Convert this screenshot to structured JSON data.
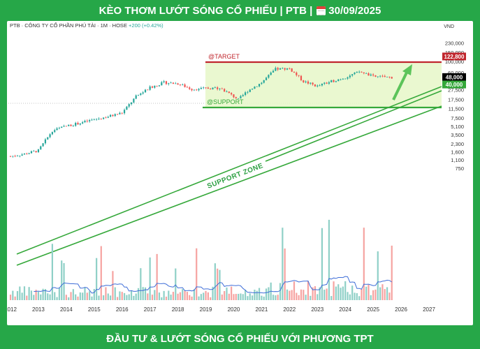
{
  "banner_top": {
    "title": "KÈO THƠM LƯỚT SÓNG CỔ PHIẾU | PTB |",
    "date": "30/09/2025"
  },
  "banner_bottom": {
    "text": "ĐẦU TƯ & LƯỚT SÓNG CỔ PHIẾU VỚI PHƯƠNG TPT"
  },
  "chart_header": {
    "symbol_line": "PTB · CÔNG TY CỔ PHẦN PHÚ TÀI · 1M · HOSE",
    "change": "+200 (+0.42%)",
    "currency": "VND"
  },
  "annotations": {
    "target_label": "@TARGET",
    "support_label": "@SUPPORT",
    "zone_label": "SUPPORT  ZONE"
  },
  "colors": {
    "banner": "#26a748",
    "target": "#c0262d",
    "support": "#35a83a",
    "zone_fill": "#e6f7c8",
    "up": "#26a69a",
    "down": "#ef5350"
  },
  "chart_data": {
    "type": "candlestick",
    "x_axis_labels": [
      "2012",
      "2013",
      "2014",
      "2015",
      "2016",
      "2017",
      "2018",
      "2019",
      "2020",
      "2021",
      "2022",
      "2023",
      "2024",
      "2025",
      "2026",
      "2027"
    ],
    "y_axis_labels": [
      "230,000",
      "150,000",
      "100,000",
      "60,000",
      "40,000",
      "27,500",
      "17,500",
      "11,500",
      "7,500",
      "5,100",
      "3,500",
      "2,300",
      "1,600",
      "1,100",
      "750"
    ],
    "y_scale": "log",
    "price_tags": [
      {
        "label": "122,800",
        "value": 122800,
        "color": "#c0262d"
      },
      {
        "label": "48,000",
        "value": 48000,
        "color": "#000000"
      },
      {
        "label": "40,000",
        "value": 40000,
        "color": "#35a83a"
      }
    ],
    "target": 122800,
    "support": 40000,
    "last_price": 48000,
    "approx_monthly_close_path": [
      [
        "2012-01",
        1300
      ],
      [
        "2012-07",
        1450
      ],
      [
        "2013-01",
        1700
      ],
      [
        "2013-07",
        4200
      ],
      [
        "2014-01",
        5200
      ],
      [
        "2014-07",
        6000
      ],
      [
        "2015-01",
        7000
      ],
      [
        "2015-07",
        8000
      ],
      [
        "2016-01",
        9500
      ],
      [
        "2016-07",
        20000
      ],
      [
        "2017-01",
        30000
      ],
      [
        "2017-07",
        38000
      ],
      [
        "2018-01",
        36000
      ],
      [
        "2018-07",
        28000
      ],
      [
        "2019-01",
        29000
      ],
      [
        "2019-07",
        30000
      ],
      [
        "2020-03",
        17500
      ],
      [
        "2020-07",
        26000
      ],
      [
        "2021-01",
        38000
      ],
      [
        "2021-07",
        70000
      ],
      [
        "2022-01",
        72000
      ],
      [
        "2022-07",
        40000
      ],
      [
        "2023-01",
        32000
      ],
      [
        "2023-07",
        40000
      ],
      [
        "2024-01",
        48000
      ],
      [
        "2024-07",
        62000
      ],
      [
        "2025-01",
        50000
      ],
      [
        "2025-09",
        48000
      ]
    ],
    "volume": "monthly volume bars with moving average line"
  }
}
